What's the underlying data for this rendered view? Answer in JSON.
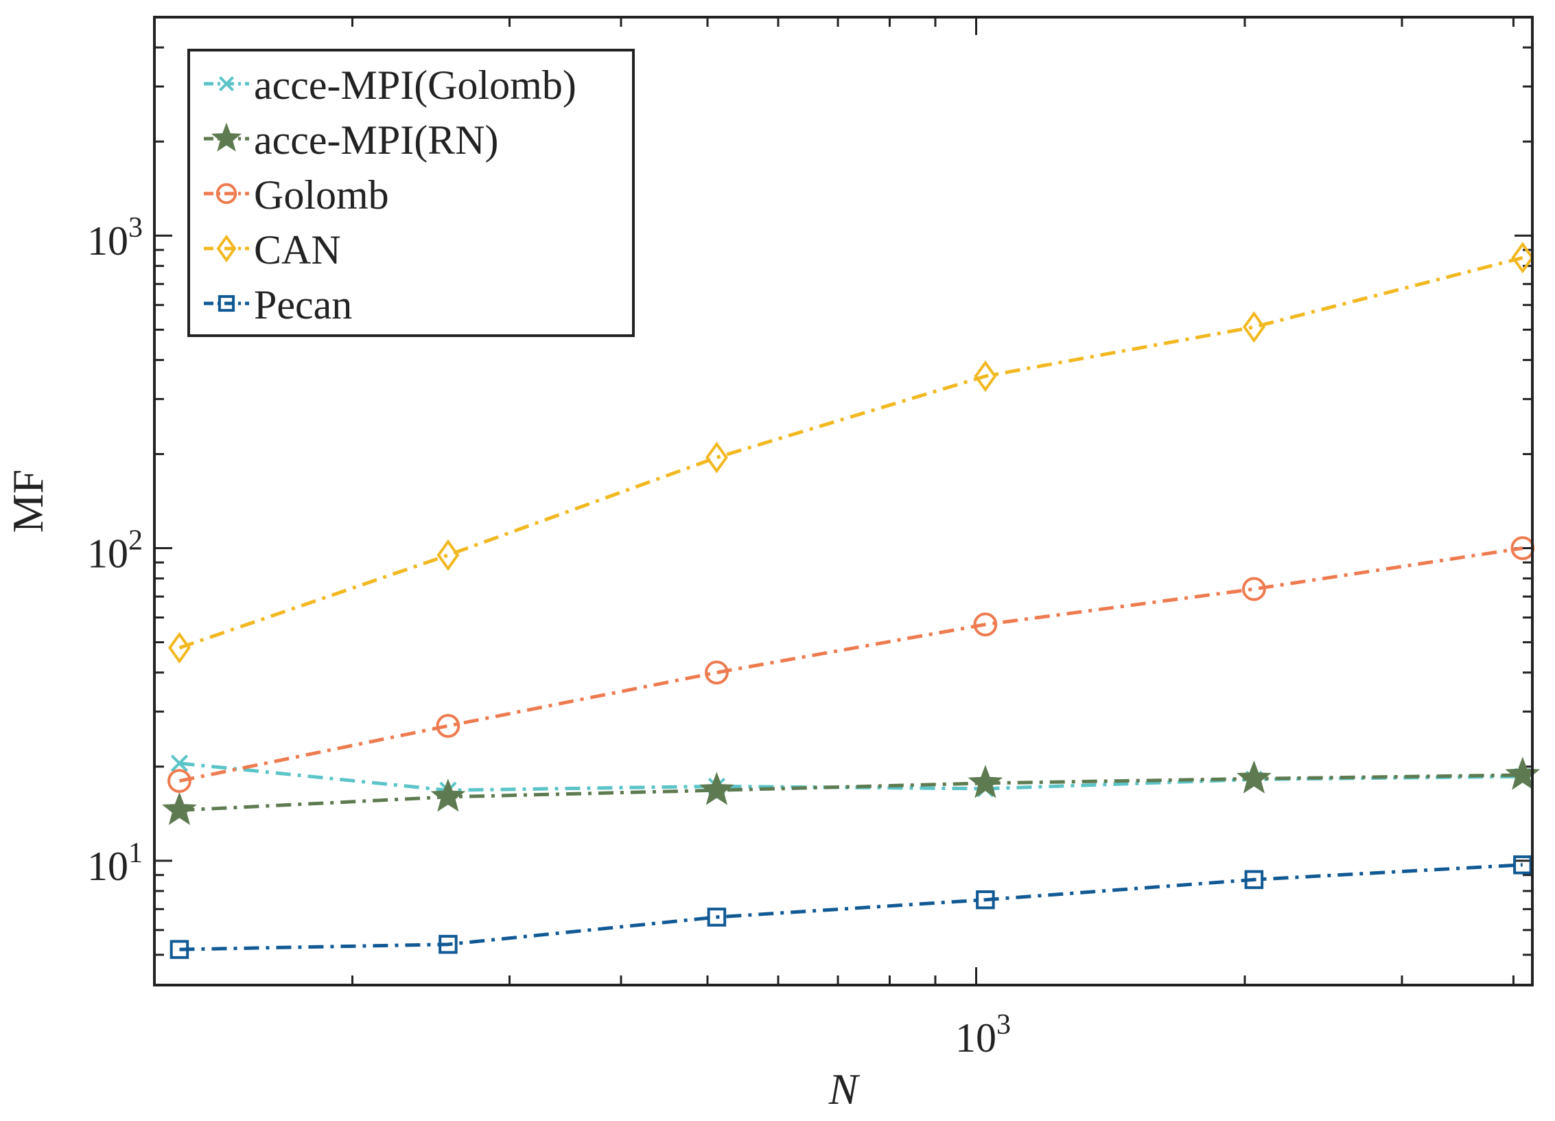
{
  "chart_data": {
    "type": "line",
    "title": "",
    "xlabel": "N",
    "ylabel": "MF",
    "xscale": "log",
    "yscale": "log",
    "xlim": [
      120,
      4200
    ],
    "ylim": [
      4,
      5000
    ],
    "x": [
      128,
      256,
      512,
      1024,
      2048,
      4096
    ],
    "x_tick_labels": [
      {
        "value": 1000,
        "base": "10",
        "exp": "3"
      }
    ],
    "y_tick_labels": [
      {
        "value": 10,
        "base": "10",
        "exp": "1"
      },
      {
        "value": 100,
        "base": "10",
        "exp": "2"
      },
      {
        "value": 1000,
        "base": "10",
        "exp": "3"
      }
    ],
    "legend_position": "top-left",
    "series": [
      {
        "name": "acce-MPI(Golomb)",
        "color": "#5bc4c8",
        "marker": "x",
        "values": [
          20.5,
          16.8,
          17.3,
          17.0,
          18.2,
          18.6
        ]
      },
      {
        "name": "acce-MPI(RN)",
        "color": "#5e7a50",
        "marker": "star",
        "values": [
          14.5,
          16.0,
          16.8,
          17.7,
          18.3,
          18.8
        ]
      },
      {
        "name": "Golomb",
        "color": "#ee7b50",
        "marker": "circle",
        "values": [
          18.0,
          27.0,
          40.0,
          57.0,
          74.0,
          100.0
        ]
      },
      {
        "name": "CAN",
        "color": "#f2b820",
        "marker": "diamond",
        "values": [
          48.0,
          95.0,
          195.0,
          355.0,
          510.0,
          850.0
        ]
      },
      {
        "name": "Pecan",
        "color": "#115994",
        "marker": "square",
        "values": [
          5.2,
          5.4,
          6.6,
          7.5,
          8.7,
          9.7
        ]
      }
    ]
  }
}
